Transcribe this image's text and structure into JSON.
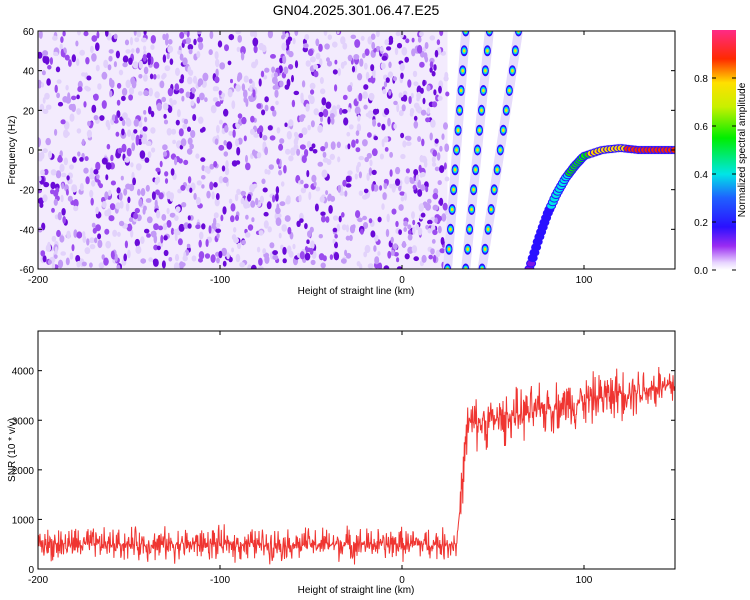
{
  "title": "GN04.2025.301.06.47.E25",
  "colors": {
    "noise": "#7b16e8",
    "snr_line": "#ef3531",
    "frame": "#000000"
  },
  "chart_data": [
    {
      "type": "heatmap",
      "title": "GN04.2025.301.06.47.E25",
      "xlabel": "Height of straight line (km)",
      "ylabel": "Frequency (Hz)",
      "xlim": [
        -200,
        150
      ],
      "ylim": [
        -60,
        60
      ],
      "xticks": [
        "-200",
        "-100",
        "0",
        "100"
      ],
      "yticks": [
        "-60",
        "-40",
        "-20",
        "0",
        "20",
        "40",
        "60"
      ],
      "colorbar": {
        "label": "Normalized spectral amplitude",
        "range": [
          0,
          1
        ],
        "ticks": [
          "0.0",
          "0.2",
          "0.4",
          "0.6",
          "0.8"
        ],
        "colormap": "rainbow (white-purple-blue-cyan-green-yellow-red-pink)"
      },
      "regions": [
        {
          "x_range": [
            -200,
            25
          ],
          "description_value": "broadband noise",
          "amplitude": 0.1
        },
        {
          "x_range": [
            25,
            150
          ],
          "description_value": "chirp tracks",
          "amplitude": 0.9
        }
      ],
      "tracks": [
        {
          "x": [
            25,
            35
          ],
          "y": [
            -60,
            60
          ]
        },
        {
          "x": [
            35,
            48
          ],
          "y": [
            -60,
            60
          ]
        },
        {
          "x": [
            44,
            64
          ],
          "y": [
            -60,
            60
          ]
        },
        {
          "x": [
            70,
            75,
            80,
            85,
            90,
            95,
            100,
            110,
            120,
            130,
            140,
            150
          ],
          "y": [
            -60,
            -45,
            -32,
            -22,
            -14,
            -8,
            -3,
            0,
            1,
            0,
            0,
            0
          ]
        }
      ]
    },
    {
      "type": "line",
      "xlabel": "Height of straight line (km)",
      "ylabel": "SNR (10 * v/v)",
      "xlim": [
        -200,
        150
      ],
      "ylim": [
        0,
        4800
      ],
      "xticks": [
        "-200",
        "-100",
        "0",
        "100"
      ],
      "yticks": [
        "0",
        "1000",
        "2000",
        "3000",
        "4000"
      ],
      "series": [
        {
          "x": [
            -200,
            -150,
            -100,
            -50,
            0,
            30,
            36,
            50,
            75,
            100,
            125,
            150
          ],
          "y": [
            500,
            500,
            500,
            500,
            500,
            500,
            2900,
            3000,
            3200,
            3400,
            3600,
            3700
          ]
        }
      ]
    }
  ]
}
